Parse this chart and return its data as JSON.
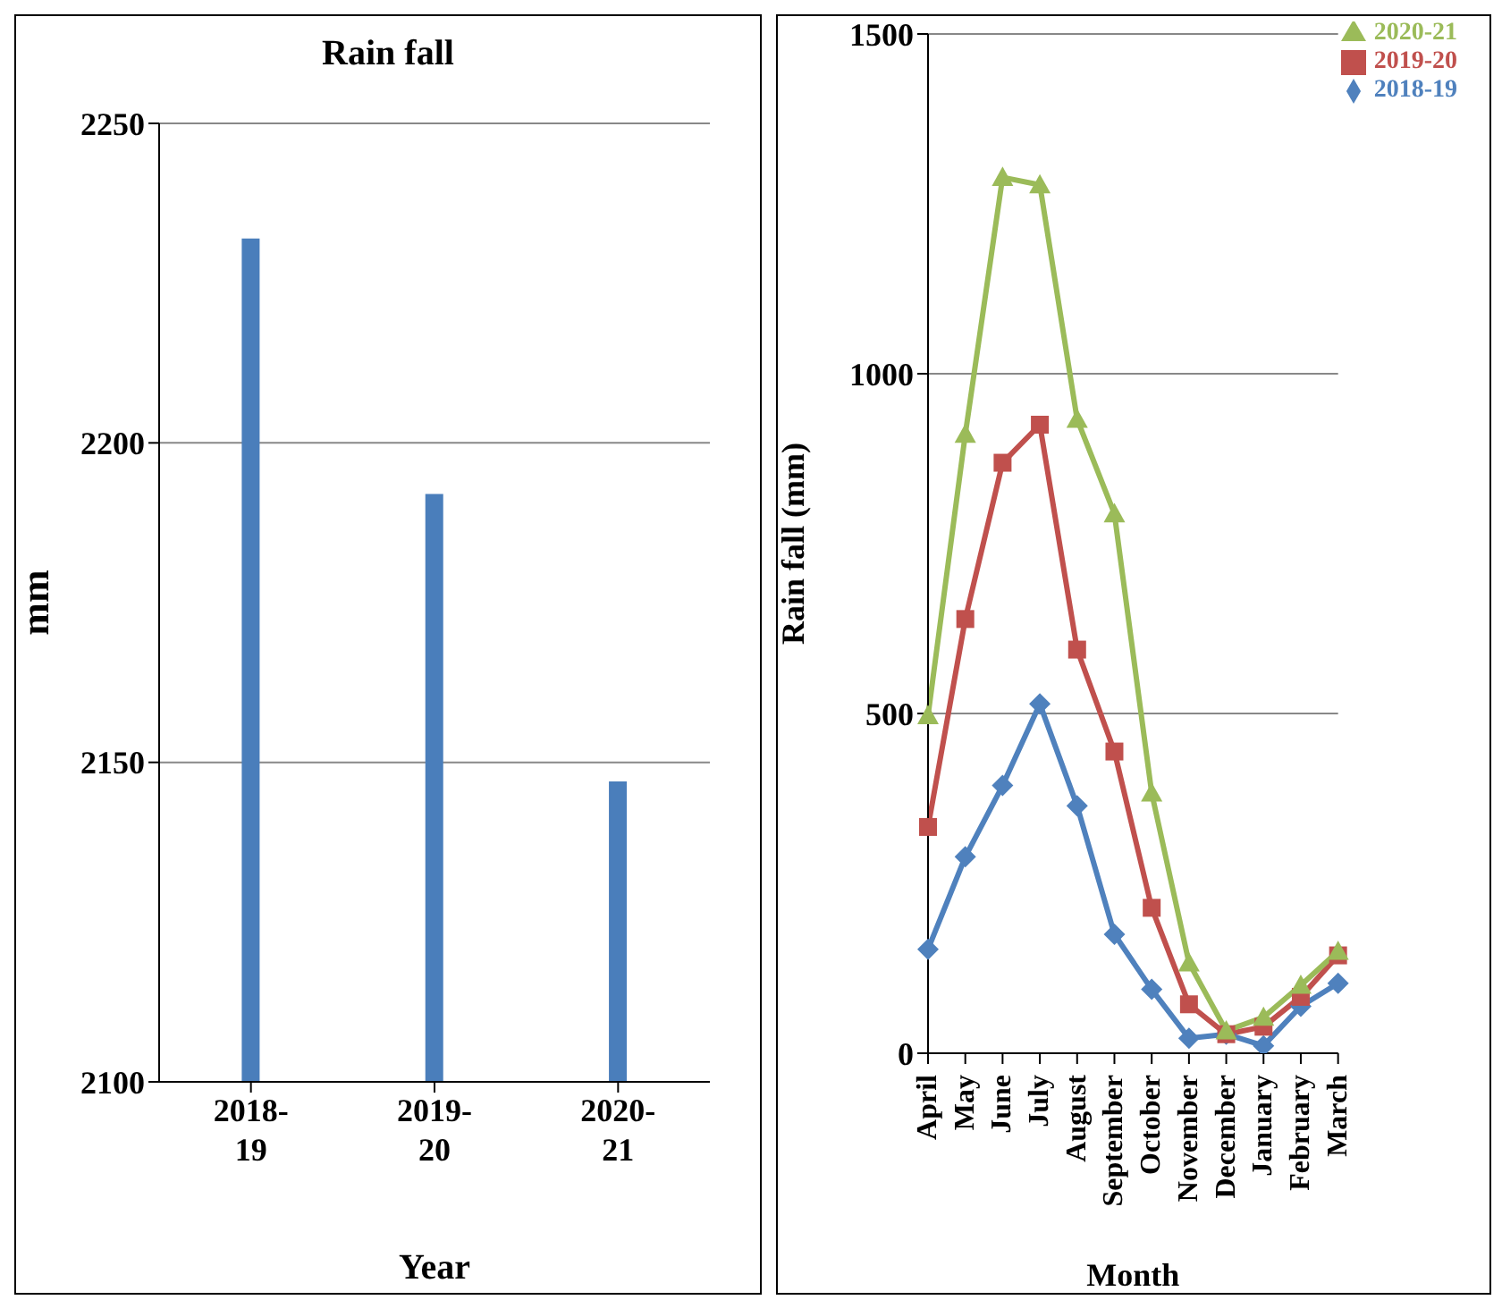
{
  "chart_data": [
    {
      "type": "bar",
      "title": "Rain fall",
      "xlabel": "Year",
      "ylabel": "mm",
      "categories": [
        "2018-19",
        "2019-20",
        "2020-21"
      ],
      "values": [
        2232,
        2192,
        2147
      ],
      "color": "#4a7ebb",
      "ylim": [
        2100,
        2250
      ],
      "yticks": [
        2100,
        2150,
        2200,
        2250
      ],
      "grid": "y"
    },
    {
      "type": "line",
      "xlabel": "Month",
      "ylabel": "Rain fall (mm)",
      "categories": [
        "April",
        "May",
        "June",
        "July",
        "August",
        "September",
        "October",
        "November",
        "December",
        "January",
        "February",
        "March"
      ],
      "series": [
        {
          "name": "2020-21",
          "color": "#9bbb59",
          "marker": "triangle",
          "values": [
            497,
            911,
            1289,
            1278,
            933,
            794,
            383,
            133,
            33,
            53,
            100,
            150
          ]
        },
        {
          "name": "2019-20",
          "color": "#c0504d",
          "marker": "square",
          "values": [
            333,
            639,
            869,
            925,
            594,
            444,
            214,
            72,
            28,
            39,
            83,
            144
          ]
        },
        {
          "name": "2018-19",
          "color": "#4f81bd",
          "marker": "diamond",
          "values": [
            153,
            289,
            394,
            514,
            364,
            175,
            94,
            22,
            28,
            11,
            69,
            103
          ]
        }
      ],
      "ylim": [
        0,
        1500
      ],
      "yticks": [
        0,
        500,
        1000,
        1500
      ],
      "grid": "y",
      "legend": "top right"
    }
  ]
}
